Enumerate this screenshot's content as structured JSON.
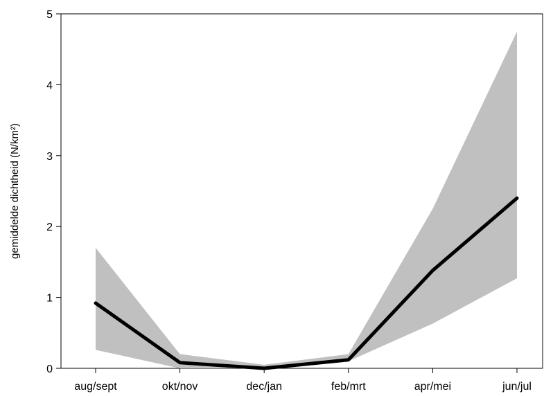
{
  "chart_data": {
    "type": "line",
    "title": "",
    "xlabel": "",
    "ylabel": "gemiddelde dichtheid (N/km²)",
    "categories": [
      "aug/sept",
      "okt/nov",
      "dec/jan",
      "feb/mrt",
      "apr/mei",
      "jun/jul"
    ],
    "series": [
      {
        "values": [
          0.92,
          0.08,
          0.0,
          0.12,
          1.38,
          2.4
        ]
      }
    ],
    "band": {
      "lower": [
        0.26,
        0.0,
        0.0,
        0.1,
        0.63,
        1.27
      ],
      "upper": [
        1.7,
        0.2,
        0.05,
        0.2,
        2.25,
        4.75
      ]
    },
    "ylim": [
      0,
      5
    ],
    "yticks": [
      0,
      1,
      2,
      3,
      4,
      5
    ],
    "grid": false,
    "legend": "none",
    "colors": {
      "line": "#000000",
      "band": "#c0c0c0",
      "axis": "#000000"
    }
  }
}
